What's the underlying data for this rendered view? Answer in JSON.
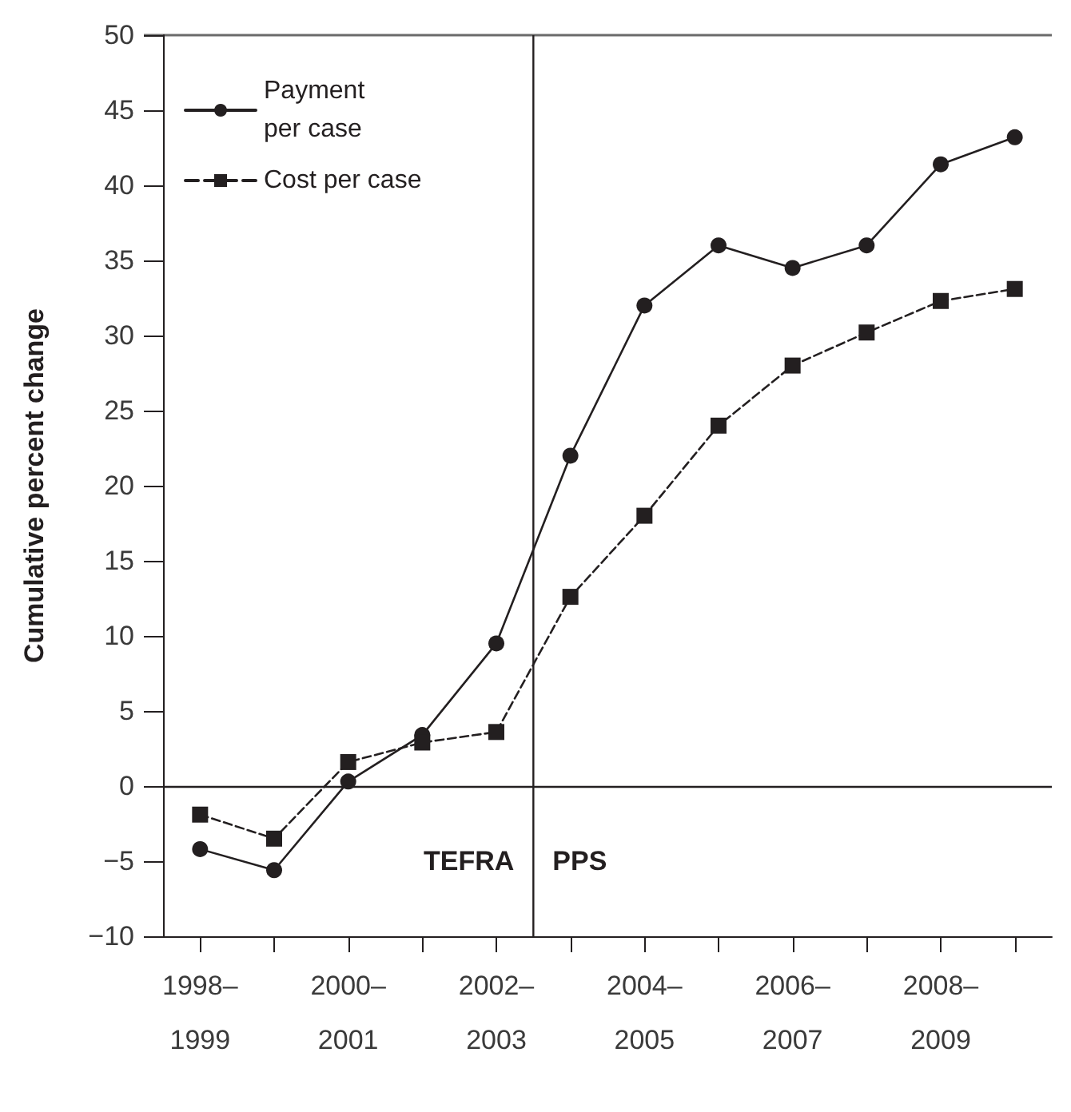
{
  "chart_data": {
    "type": "line",
    "ylabel": "Cumulative percent change",
    "categories": [
      "1998–\n1999",
      null,
      "2000–\n2001",
      null,
      "2002–\n2003",
      null,
      "2004–\n2005",
      null,
      "2006–\n2007",
      null,
      "2008–\n2009",
      null
    ],
    "ylim": [
      -10,
      50
    ],
    "yticks": [
      -10,
      -5,
      0,
      5,
      10,
      15,
      20,
      25,
      30,
      35,
      40,
      45,
      50
    ],
    "series": [
      {
        "name": "Payment\nper case",
        "color": "#231f20",
        "marker": "circle",
        "line_style": "solid",
        "values": [
          -4.2,
          -5.6,
          0.3,
          3.4,
          9.5,
          22,
          32,
          36,
          34.5,
          36,
          41.4,
          43.2
        ]
      },
      {
        "name": "Cost per case",
        "color": "#231f20",
        "marker": "square",
        "line_style": "dashed",
        "values": [
          -1.9,
          -3.5,
          1.6,
          2.9,
          3.6,
          12.6,
          18,
          24,
          28,
          30.2,
          32.3,
          33.1
        ]
      }
    ],
    "ref_lines": [
      {
        "axis": "y",
        "value": 0,
        "color": "#231f20"
      }
    ],
    "annotations": [
      "TEFRA",
      "PPS"
    ],
    "grid": false,
    "legend": "top left"
  }
}
